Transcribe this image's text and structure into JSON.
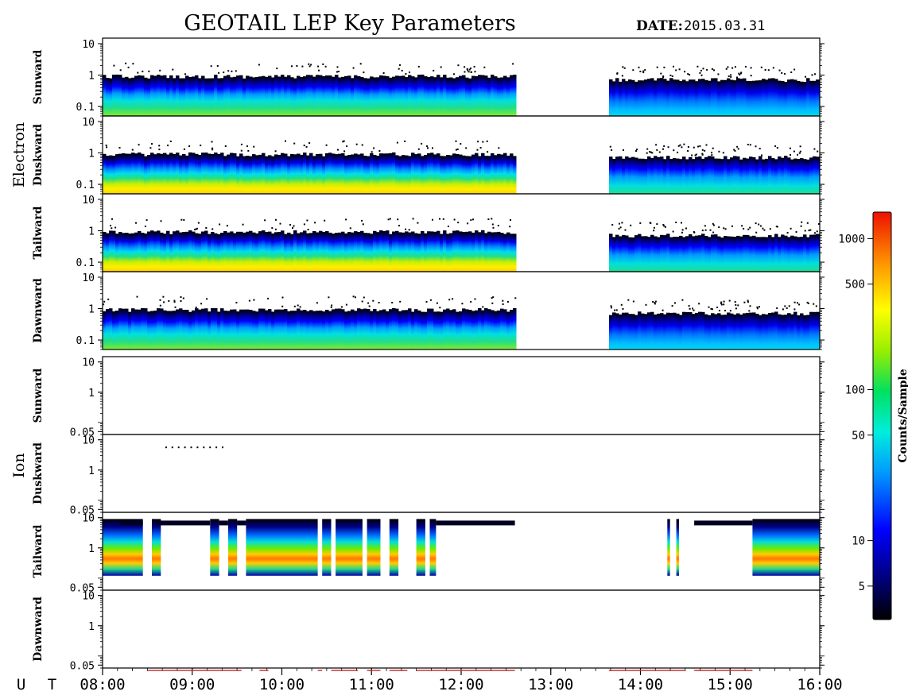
{
  "chart_data": {
    "type": "heatmap",
    "title": "GEOTAIL LEP Key Parameters",
    "date_label": "DATE:",
    "date_value": "2015.03.31",
    "x_axis_label": "U T",
    "x_ticks": [
      "08:00",
      "09:00",
      "10:00",
      "11:00",
      "12:00",
      "13:00",
      "14:00",
      "15:00",
      "16:00"
    ],
    "x_range_hours": [
      8,
      16
    ],
    "log_scale_y": true,
    "groups": [
      {
        "name": "Electron",
        "y_range": [
          0.05,
          15
        ],
        "y_ticks": [
          "10",
          "1",
          "0.1"
        ],
        "panels": [
          {
            "name": "Sunward",
            "intensity": "moderate",
            "data_intervals_ut": [
              [
                8.0,
                12.6
              ],
              [
                13.65,
                16.0
              ]
            ]
          },
          {
            "name": "Duskward",
            "intensity": "high",
            "data_intervals_ut": [
              [
                8.0,
                12.6
              ],
              [
                13.65,
                16.0
              ]
            ]
          },
          {
            "name": "Tailward",
            "intensity": "high",
            "data_intervals_ut": [
              [
                8.0,
                12.6
              ],
              [
                13.65,
                16.0
              ]
            ]
          },
          {
            "name": "Dawnward",
            "intensity": "moderate",
            "data_intervals_ut": [
              [
                8.0,
                12.6
              ],
              [
                13.65,
                16.0
              ]
            ]
          }
        ]
      },
      {
        "name": "Ion",
        "y_range": [
          0.04,
          15
        ],
        "y_ticks": [
          "10",
          "1",
          "0.05"
        ],
        "panels": [
          {
            "name": "Sunward",
            "intensity": "none",
            "data_intervals_ut": []
          },
          {
            "name": "Duskward",
            "intensity": "none",
            "data_intervals_ut": []
          },
          {
            "name": "Tailward",
            "intensity": "high",
            "data_intervals_ut": [
              [
                8.0,
                8.45
              ],
              [
                8.55,
                8.65
              ],
              [
                9.2,
                9.3
              ],
              [
                9.4,
                9.5
              ],
              [
                9.6,
                10.4
              ],
              [
                10.45,
                10.55
              ],
              [
                10.6,
                10.9
              ],
              [
                10.95,
                11.1
              ],
              [
                11.2,
                11.3
              ],
              [
                11.5,
                11.6
              ],
              [
                11.65,
                11.72
              ],
              [
                14.3,
                14.33
              ],
              [
                14.4,
                14.43
              ],
              [
                15.25,
                16.0
              ]
            ]
          },
          {
            "name": "Dawnward",
            "intensity": "none",
            "data_intervals_ut": []
          }
        ]
      }
    ],
    "colorbar": {
      "label": "Counts/Sample",
      "scale": "log",
      "range": [
        3,
        1500
      ],
      "ticks": [
        "1000",
        "500",
        "100",
        "50",
        "10",
        "5"
      ],
      "tick_values": [
        1000,
        500,
        100,
        50,
        10,
        5
      ]
    }
  }
}
